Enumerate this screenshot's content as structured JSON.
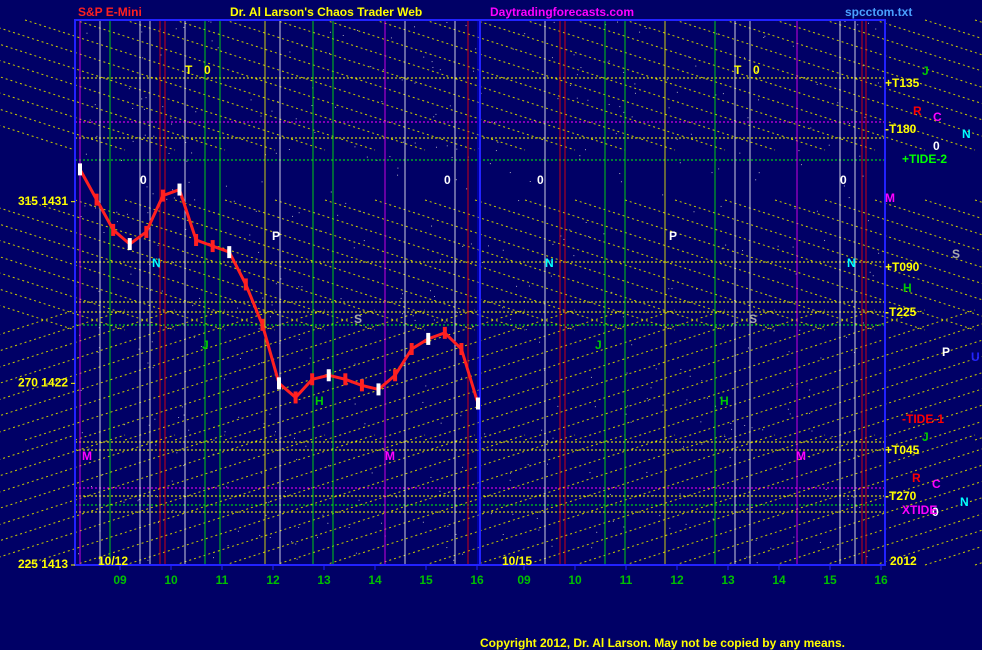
{
  "chart_data": {
    "type": "line",
    "title": "S&P E-Mini",
    "subtitle": "Dr. Al Larson's Chaos Trader Web",
    "site": "Daytradingforecasts.com",
    "file": "spcctom.txt",
    "copyright": "Copyright 2012, Dr. Al Larson. May not be copied by any means.",
    "ylim": [
      1413,
      1440
    ],
    "yticks": [
      {
        "value": 1413,
        "label": "225 1413"
      },
      {
        "value": 1422,
        "label": "270 1422"
      },
      {
        "value": 1431,
        "label": "315 1431"
      }
    ],
    "xlabels": [
      "09",
      "10",
      "11",
      "12",
      "13",
      "14",
      "15",
      "16",
      "09",
      "10",
      "11",
      "12",
      "13",
      "14",
      "15",
      "16"
    ],
    "panel_labels": [
      "10/12",
      "10/15",
      "2012"
    ],
    "series": [
      {
        "color": "#ff2020",
        "values": [
          1432.6,
          1431.1,
          1429.6,
          1428.9,
          1429.5,
          1431.3,
          1431.6,
          1429.1,
          1428.8,
          1428.5,
          1426.9,
          1424.9,
          1422.0,
          1421.3,
          1422.2,
          1422.4,
          1422.2,
          1421.9,
          1421.7,
          1422.4,
          1423.7,
          1424.2,
          1424.5,
          1423.7,
          1421.0
        ]
      }
    ],
    "annotations": [
      "T",
      "0",
      "T",
      "0",
      "+T135",
      "J",
      "R",
      "C",
      "N",
      "-T180",
      "0",
      "+TIDE-2",
      "M",
      "S",
      "+T090",
      "H",
      "-T225",
      "P",
      "U",
      "-TIDE-1",
      "J",
      "+T045",
      "R",
      "C",
      "N",
      "-T270",
      "0",
      "XTIDE",
      "0",
      "N",
      "P",
      "S",
      "H",
      "J",
      "M",
      "M",
      "0",
      "0",
      "N",
      "P",
      "S",
      "H",
      "M",
      "0",
      "N",
      "J"
    ]
  }
}
